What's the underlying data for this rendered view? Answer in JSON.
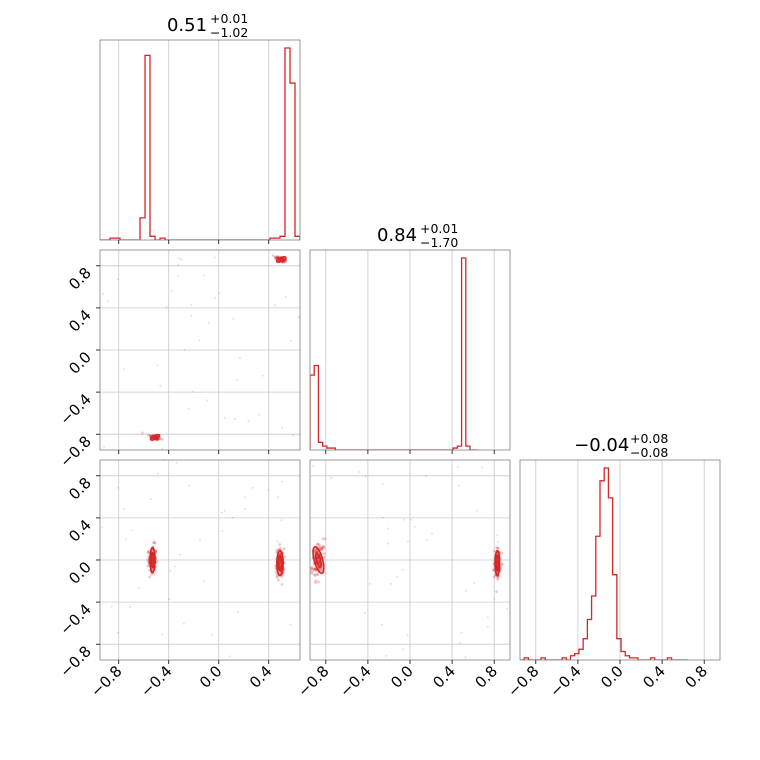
{
  "chart_data": {
    "type": "corner",
    "colors": {
      "line": "#d62728",
      "grid": "#c8c8c8",
      "frame": "#808080"
    },
    "grid": true,
    "params": [
      {
        "title": {
          "value": "0.51",
          "sup": "+0.01",
          "sub": "−1.02"
        },
        "range": [
          -0.95,
          0.65
        ],
        "ticks": [
          "−0.8",
          "−0.4",
          "0.0",
          "0.4"
        ],
        "tick_values": [
          -0.8,
          -0.4,
          0.0,
          0.4
        ],
        "hist": {
          "edges_start": -0.95,
          "bin_width": 0.04,
          "counts": [
            0,
            0,
            0.01,
            0.01,
            0,
            0,
            0,
            0,
            0.12,
            1.0,
            0.02,
            0,
            0.01,
            0,
            0,
            0,
            0,
            0,
            0,
            0,
            0,
            0,
            0,
            0,
            0,
            0,
            0,
            0,
            0,
            0,
            0,
            0,
            0,
            0,
            0.01,
            0.01,
            0.02,
            1.04,
            0.85,
            0.02
          ]
        }
      },
      {
        "title": {
          "value": "0.84",
          "sup": "+0.01",
          "sub": "−1.70"
        },
        "range": [
          -0.95,
          0.95
        ],
        "ticks": [
          "−0.8",
          "−0.4",
          "0.0",
          "0.4",
          "0.8"
        ],
        "tick_values": [
          -0.8,
          -0.4,
          0.0,
          0.4,
          0.8
        ],
        "hist": {
          "edges_start": -0.95,
          "bin_width": 0.04,
          "counts": [
            0.39,
            0.44,
            0.04,
            0.02,
            0.01,
            0.01,
            0,
            0,
            0,
            0,
            0,
            0,
            0,
            0,
            0,
            0,
            0,
            0,
            0,
            0,
            0,
            0,
            0,
            0,
            0,
            0,
            0,
            0,
            0,
            0,
            0,
            0,
            0,
            0,
            0.01,
            0.02,
            1.0,
            0.02,
            0,
            0
          ]
        }
      },
      {
        "title": {
          "value": "−0.04",
          "sup": "+0.08",
          "sub": "−0.08"
        },
        "range": [
          -0.95,
          0.95
        ],
        "ticks": [
          "−0.8",
          "−0.4",
          "0.0",
          "0.4",
          "0.8"
        ],
        "tick_values": [
          -0.8,
          -0.4,
          0.0,
          0.4,
          0.8
        ],
        "hist": {
          "edges_start": -0.95,
          "bin_width": 0.04,
          "counts": [
            0,
            0.01,
            0,
            0,
            0,
            0.01,
            0,
            0,
            0,
            0,
            0.01,
            0,
            0.02,
            0.03,
            0.05,
            0.1,
            0.19,
            0.3,
            0.58,
            0.84,
            0.9,
            0.76,
            0.4,
            0.1,
            0.04,
            0.02,
            0.01,
            0.01,
            0,
            0,
            0,
            0.01,
            0,
            0,
            0,
            0.01,
            0,
            0,
            0,
            0
          ]
        }
      }
    ],
    "pairs": [
      {
        "x_param": 0,
        "y_param": 1,
        "clusters": [
          {
            "cx": 0.5,
            "cy": 0.86,
            "sx": 0.025,
            "sy": 0.015,
            "rho": -0.6,
            "n": 70
          },
          {
            "cx": -0.51,
            "cy": -0.83,
            "sx": 0.025,
            "sy": 0.015,
            "rho": -0.6,
            "n": 70
          }
        ],
        "contours": [
          {
            "cx": 0.5,
            "cy": 0.86,
            "rx": 0.04,
            "ry": 0.018,
            "angle": -25
          },
          {
            "cx": -0.51,
            "cy": -0.83,
            "rx": 0.04,
            "ry": 0.018,
            "angle": -25
          }
        ]
      },
      {
        "x_param": 0,
        "y_param": 2,
        "clusters": [
          {
            "cx": -0.53,
            "cy": 0.0,
            "sx": 0.015,
            "sy": 0.07,
            "rho": 0,
            "n": 110
          },
          {
            "cx": 0.49,
            "cy": -0.03,
            "sx": 0.017,
            "sy": 0.07,
            "rho": 0,
            "n": 110
          }
        ],
        "contours": [
          {
            "cx": -0.53,
            "cy": 0.0,
            "rx": 0.02,
            "ry": 0.12,
            "angle": 0
          },
          {
            "cx": -0.53,
            "cy": 0.0,
            "rx": 0.012,
            "ry": 0.07,
            "angle": 0
          },
          {
            "cx": 0.49,
            "cy": -0.03,
            "rx": 0.025,
            "ry": 0.12,
            "angle": 0
          },
          {
            "cx": 0.49,
            "cy": -0.03,
            "rx": 0.014,
            "ry": 0.07,
            "angle": 0
          }
        ]
      },
      {
        "x_param": 1,
        "y_param": 2,
        "clusters": [
          {
            "cx": -0.87,
            "cy": 0.0,
            "sx": 0.03,
            "sy": 0.08,
            "rho": 0.3,
            "n": 110
          },
          {
            "cx": 0.83,
            "cy": -0.03,
            "sx": 0.015,
            "sy": 0.07,
            "rho": 0,
            "n": 110
          }
        ],
        "contours": [
          {
            "cx": -0.87,
            "cy": 0.0,
            "rx": 0.04,
            "ry": 0.13,
            "angle": -15
          },
          {
            "cx": -0.87,
            "cy": 0.0,
            "rx": 0.02,
            "ry": 0.07,
            "angle": -15
          },
          {
            "cx": 0.83,
            "cy": -0.03,
            "rx": 0.02,
            "ry": 0.12,
            "angle": 0
          },
          {
            "cx": 0.83,
            "cy": -0.03,
            "rx": 0.012,
            "ry": 0.07,
            "angle": 0
          }
        ]
      }
    ]
  }
}
